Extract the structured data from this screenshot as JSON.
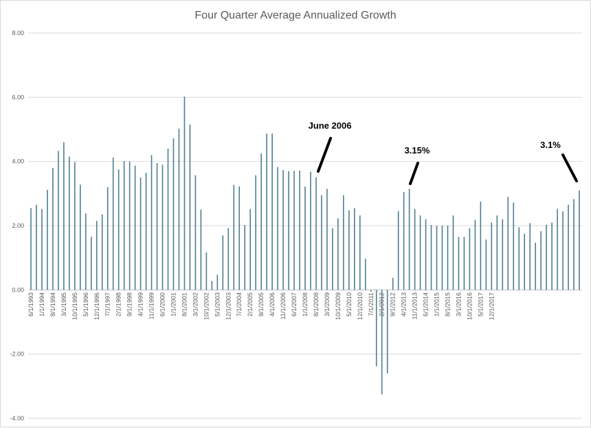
{
  "chart_data": {
    "type": "bar",
    "title": "Four Quarter Average Annualized Growth",
    "xlabel": "",
    "ylabel": "",
    "ylim": [
      -4,
      8
    ],
    "y_ticks": [
      "8.00",
      "6.00",
      "4.00",
      "2.00",
      "0.00",
      "-2.00",
      "-4.00"
    ],
    "grid": true,
    "x_tick_labels": [
      "6/1/1993",
      "1/1/1994",
      "8/1/1994",
      "3/1/1995",
      "10/1/1995",
      "5/1/1996",
      "12/1/1996",
      "7/1/1997",
      "2/1/1998",
      "9/1/1998",
      "4/1/1999",
      "11/1/1999",
      "6/1/2000",
      "1/1/2001",
      "8/1/2001",
      "3/1/2002",
      "10/1/2002",
      "5/1/2003",
      "12/1/2003",
      "7/1/2004",
      "2/1/2005",
      "9/1/2005",
      "4/1/2006",
      "11/1/2006",
      "6/1/2007",
      "1/1/2008",
      "8/1/2008",
      "3/1/2009",
      "10/1/2009",
      "5/1/2010",
      "12/1/2010",
      "7/1/2011",
      "2/1/2012",
      "9/1/2012",
      "4/1/2013",
      "11/1/2013",
      "6/1/2014",
      "1/1/2015",
      "8/1/2015",
      "3/1/2016",
      "10/1/2016",
      "5/1/2017",
      "12/1/2017"
    ],
    "label_every": 2,
    "values": [
      2.55,
      2.65,
      2.52,
      3.12,
      3.8,
      4.33,
      4.6,
      4.15,
      3.98,
      3.28,
      2.38,
      1.65,
      2.15,
      2.35,
      3.2,
      4.12,
      3.75,
      4.01,
      4.0,
      3.87,
      3.5,
      3.65,
      4.2,
      3.95,
      3.9,
      4.4,
      4.72,
      5.02,
      6.02,
      5.15,
      3.57,
      2.5,
      1.17,
      0.28,
      0.47,
      1.7,
      1.93,
      3.27,
      3.22,
      2.02,
      2.52,
      3.57,
      4.25,
      4.87,
      4.87,
      3.83,
      3.73,
      3.7,
      3.71,
      3.72,
      3.22,
      3.68,
      3.5,
      2.95,
      3.15,
      1.92,
      2.23,
      2.95,
      2.48,
      2.55,
      2.32,
      0.97,
      -0.05,
      -2.38,
      -3.25,
      -2.6,
      0.38,
      2.45,
      3.05,
      3.15,
      2.52,
      2.32,
      2.2,
      2.02,
      2.0,
      2.0,
      2.0,
      2.32,
      1.65,
      1.65,
      1.92,
      2.18,
      2.75,
      1.57,
      2.1,
      2.32,
      2.2,
      2.9,
      2.72,
      1.95,
      1.75,
      2.08,
      1.47,
      1.83,
      2.03,
      2.1,
      2.52,
      2.45,
      2.65,
      2.83,
      3.1
    ],
    "annotations": [
      {
        "text": "June 2006"
      },
      {
        "text": "3.15%"
      },
      {
        "text": "3.1%"
      }
    ]
  }
}
